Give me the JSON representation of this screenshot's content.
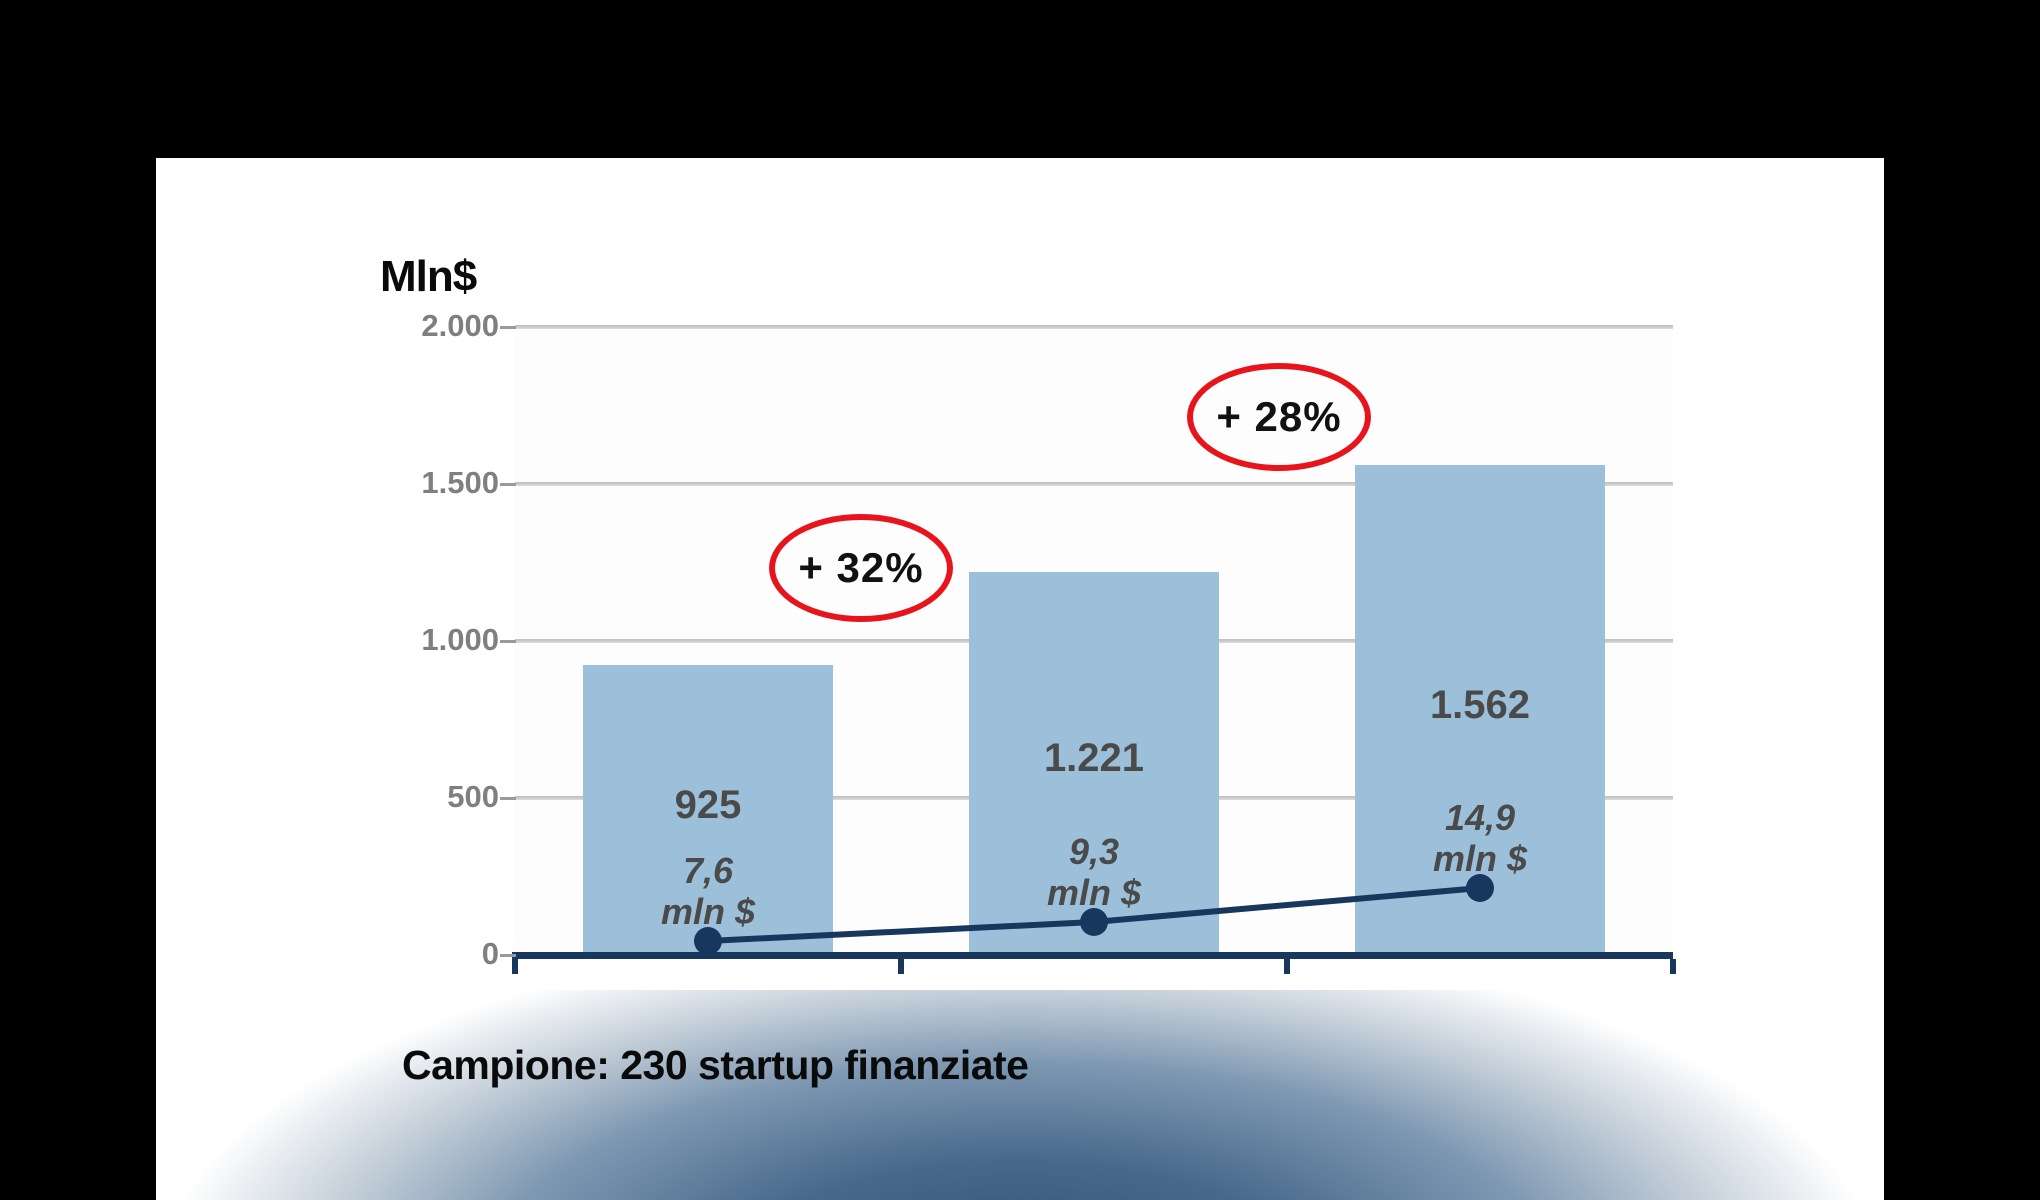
{
  "slide": {
    "axis_title": "Mln$",
    "footer_caption": "Campione: 230 startup finanziate"
  },
  "chart_data": {
    "type": "bar",
    "axis_title": "Mln$",
    "ylim": [
      0,
      2000
    ],
    "ytick_values": [
      0,
      500,
      1000,
      1500,
      2000
    ],
    "ytick_labels": [
      "0",
      "500",
      "1.000",
      "1.500",
      "2.000"
    ],
    "grid": true,
    "legend": "none",
    "n_categories": 3,
    "bar_series": {
      "values": [
        925,
        1221,
        1562
      ],
      "data_labels": [
        "925",
        "1.221",
        "1.562"
      ],
      "color": "#9DC0DA"
    },
    "line_series": {
      "values": [
        7.6,
        9.3,
        14.9
      ],
      "data_labels": [
        [
          "7,6",
          "mln $"
        ],
        [
          "9,3",
          "mln $"
        ],
        [
          "14,9",
          "mln $"
        ]
      ],
      "color": "#17375E",
      "marker_px_above_axis": [
        14,
        33,
        67
      ]
    },
    "annotations": [
      {
        "text": "+ 32%",
        "shape": "ellipse",
        "color": "#E8141C"
      },
      {
        "text": "+ 28%",
        "shape": "ellipse",
        "color": "#E8141C"
      }
    ]
  },
  "colors": {
    "background": "#000000",
    "slide": "#FFFFFF",
    "bar_fill": "#9DC0DA",
    "navy": "#17375E",
    "gridline": "#C6C6C6",
    "tick_label": "#7F7F7F",
    "data_label": "#4A4A4A",
    "annotation_red": "#E8141C"
  }
}
